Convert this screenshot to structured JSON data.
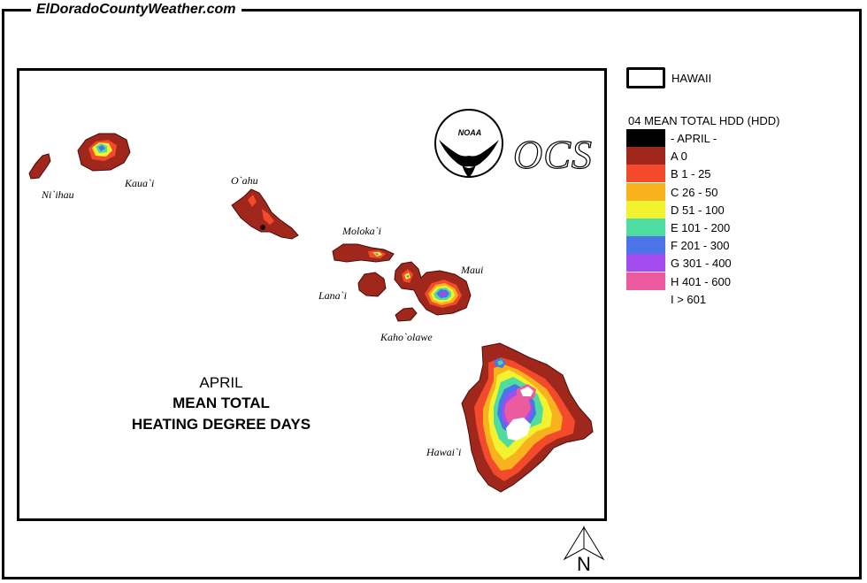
{
  "site": {
    "title": "ElDoradoCountyWeather.com"
  },
  "map": {
    "title": {
      "month": "APRIL",
      "line1": "MEAN TOTAL",
      "line2": "HEATING DEGREE DAYS"
    },
    "islands": {
      "niihau": "Ni`ihau",
      "kauai": "Kaua`i",
      "oahu": "O`ahu",
      "molokai": "Moloka`i",
      "lanai": "Lana`i",
      "maui": "Maui",
      "kahoolawe": "Kaho`olawe",
      "hawaii": "Hawai`i"
    },
    "logos": {
      "noaa": "NOAA",
      "ocs": "OCS"
    },
    "north_arrow": "N"
  },
  "legend": {
    "boundary_label": "HAWAII",
    "title": "04 MEAN TOTAL HDD (HDD)",
    "items": [
      {
        "label": "- APRIL -",
        "color": "#000000"
      },
      {
        "label": "A 0",
        "color": "#A0271C"
      },
      {
        "label": "B 1 - 25",
        "color": "#F24A2B"
      },
      {
        "label": "C 26 - 50",
        "color": "#F7B21E"
      },
      {
        "label": "D 51 - 100",
        "color": "#F2F22E"
      },
      {
        "label": "E 101 - 200",
        "color": "#4FDCA0"
      },
      {
        "label": "F 201 - 300",
        "color": "#4A74E8"
      },
      {
        "label": "G 301 - 400",
        "color": "#A54CF0"
      },
      {
        "label": "H 401 - 600",
        "color": "#EC5A9F"
      },
      {
        "label": "I > 601",
        "color": "#FFFFFF"
      }
    ]
  }
}
